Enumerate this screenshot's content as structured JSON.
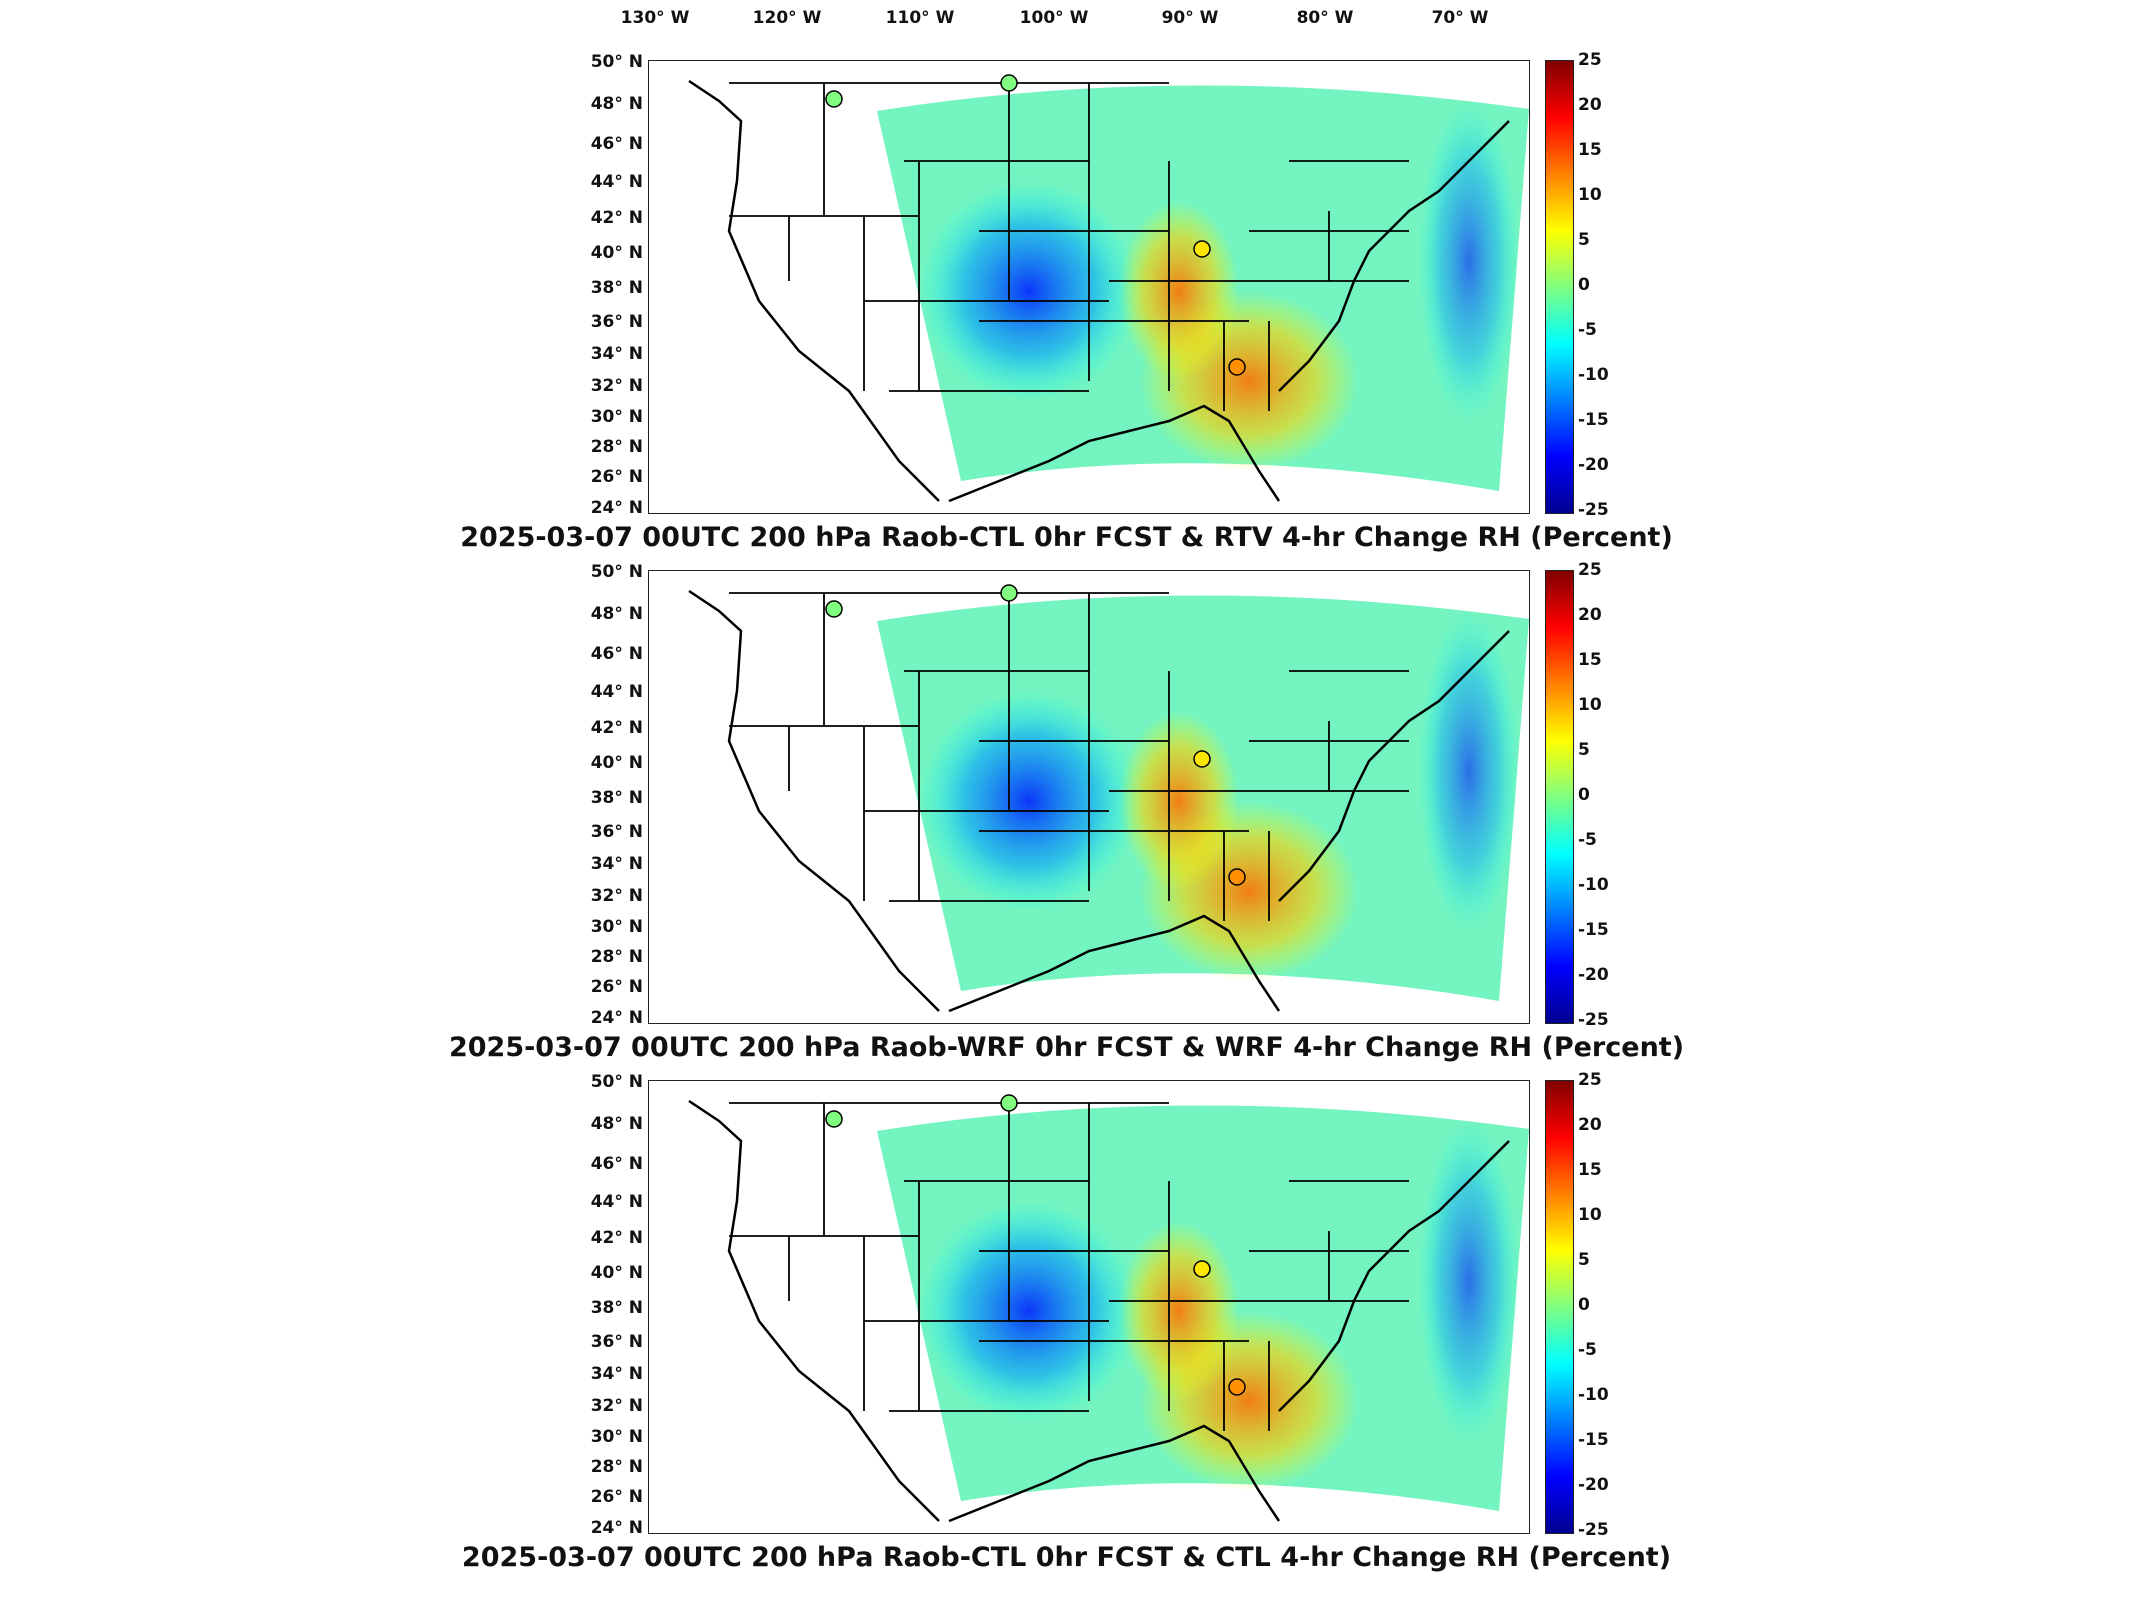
{
  "lon_axis": [
    "130° W",
    "120° W",
    "110° W",
    "100° W",
    "90° W",
    "80° W",
    "70° W"
  ],
  "lat_axis": [
    "50° N",
    "48° N",
    "46° N",
    "44° N",
    "42° N",
    "40° N",
    "38° N",
    "36° N",
    "34° N",
    "32° N",
    "30° N",
    "28° N",
    "26° N",
    "24° N"
  ],
  "colorbar": {
    "ticks": [
      "25",
      "20",
      "15",
      "10",
      "5",
      "0",
      "-5",
      "-10",
      "-15",
      "-20",
      "-25"
    ],
    "range": [
      -25,
      25
    ],
    "colormap": [
      "#00008f",
      "#0000ff",
      "#0080ff",
      "#00ffff",
      "#80ff80",
      "#ffff00",
      "#ff8000",
      "#ff0000",
      "#800000"
    ]
  },
  "panels": [
    {
      "title": "2025-03-07 00UTC 200 hPa Raob-CTL 0hr FCST & RTV 4-hr Change RH (Percent)"
    },
    {
      "title": "2025-03-07 00UTC 200 hPa Raob-WRF 0hr FCST & WRF 4-hr Change RH (Percent)"
    },
    {
      "title": "2025-03-07 00UTC 200 hPa Raob-CTL 0hr FCST & CTL 4-hr Change RH (Percent)"
    }
  ],
  "raob_stations": [
    {
      "lat": 47.5,
      "lon": -111.4,
      "values": [
        0,
        0,
        0
      ]
    },
    {
      "lat": 49.0,
      "lon": -93.5,
      "values": [
        0,
        0,
        0
      ]
    },
    {
      "lat": 40.2,
      "lon": -89.3,
      "values": [
        5,
        8,
        5
      ]
    },
    {
      "lat": 33.2,
      "lon": -86.8,
      "values": [
        12,
        12,
        12
      ]
    }
  ]
}
